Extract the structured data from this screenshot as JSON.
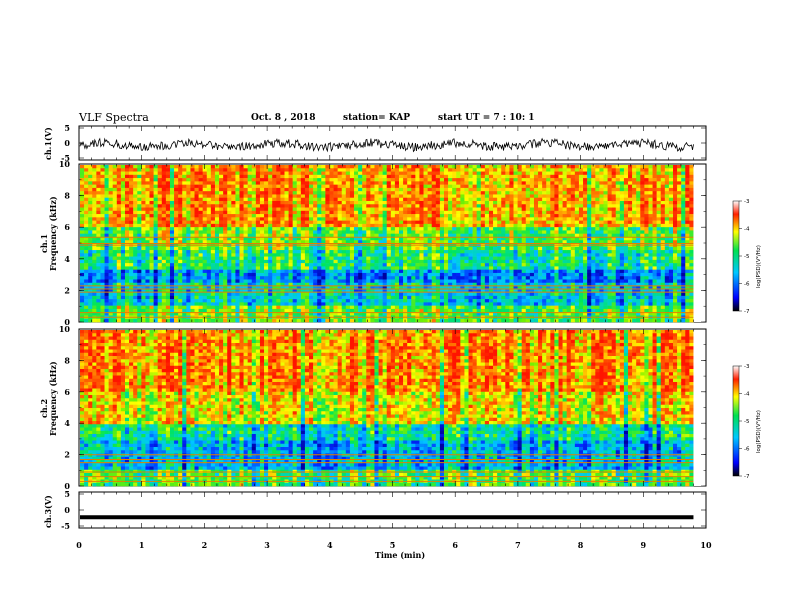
{
  "header": {
    "title": "VLF Spectra",
    "date": "Oct. 8 , 2018",
    "station": "station= KAP",
    "start": "start UT = 7 : 10: 1"
  },
  "chart_data": [
    {
      "type": "line",
      "panel": "ch1-waveform",
      "ylabel": "ch.1(V)",
      "ylim": [
        -5,
        5
      ],
      "yticks": [
        "5",
        "0",
        "-5"
      ],
      "xlim": [
        0,
        10
      ],
      "description_values": "noisy signal around 0 V, amplitude about ±1.5 V, over 0–9.8 min"
    },
    {
      "type": "heatmap",
      "panel": "ch1-spectrogram",
      "ylabel": "ch.1\nFrequency (kHz)",
      "ylim": [
        0,
        10
      ],
      "yticks": [
        "0",
        "2",
        "4",
        "6",
        "8",
        "10"
      ],
      "xlim": [
        0,
        10
      ],
      "data_end_min": 9.8,
      "colorbar": {
        "label": "log(PSD)(V²/Hz)",
        "range": [
          -7,
          -3
        ],
        "ticks": [
          "-3",
          "-4",
          "-5",
          "-6",
          "-7"
        ]
      },
      "bands_khz": [
        5.4,
        5.0,
        4.9,
        2.3,
        2.1,
        1.9,
        0.6,
        0.3
      ]
    },
    {
      "type": "heatmap",
      "panel": "ch2-spectrogram",
      "ylabel": "ch.2\nFrequency (kHz)",
      "ylim": [
        0,
        10
      ],
      "yticks": [
        "0",
        "2",
        "4",
        "6",
        "8",
        "10"
      ],
      "xlim": [
        0,
        10
      ],
      "data_end_min": 9.8,
      "colorbar": {
        "label": "log(PSD)(V²/Hz)",
        "range": [
          -7,
          -3
        ],
        "ticks": [
          "-3",
          "-4",
          "-5",
          "-6",
          "-7"
        ]
      },
      "bands_khz": [
        2.0,
        1.7,
        1.5,
        0.9,
        0.6,
        0.3
      ]
    },
    {
      "type": "line",
      "panel": "ch3-waveform",
      "ylabel": "ch.3(V)",
      "ylim": [
        -5,
        5
      ],
      "yticks": [
        "5",
        "0",
        "-5"
      ],
      "xlim": [
        0,
        10
      ],
      "xlabel": "Time (min)",
      "xticks": [
        "0",
        "1",
        "2",
        "3",
        "4",
        "5",
        "6",
        "7",
        "8",
        "9",
        "10"
      ],
      "constant_value": -2
    }
  ]
}
